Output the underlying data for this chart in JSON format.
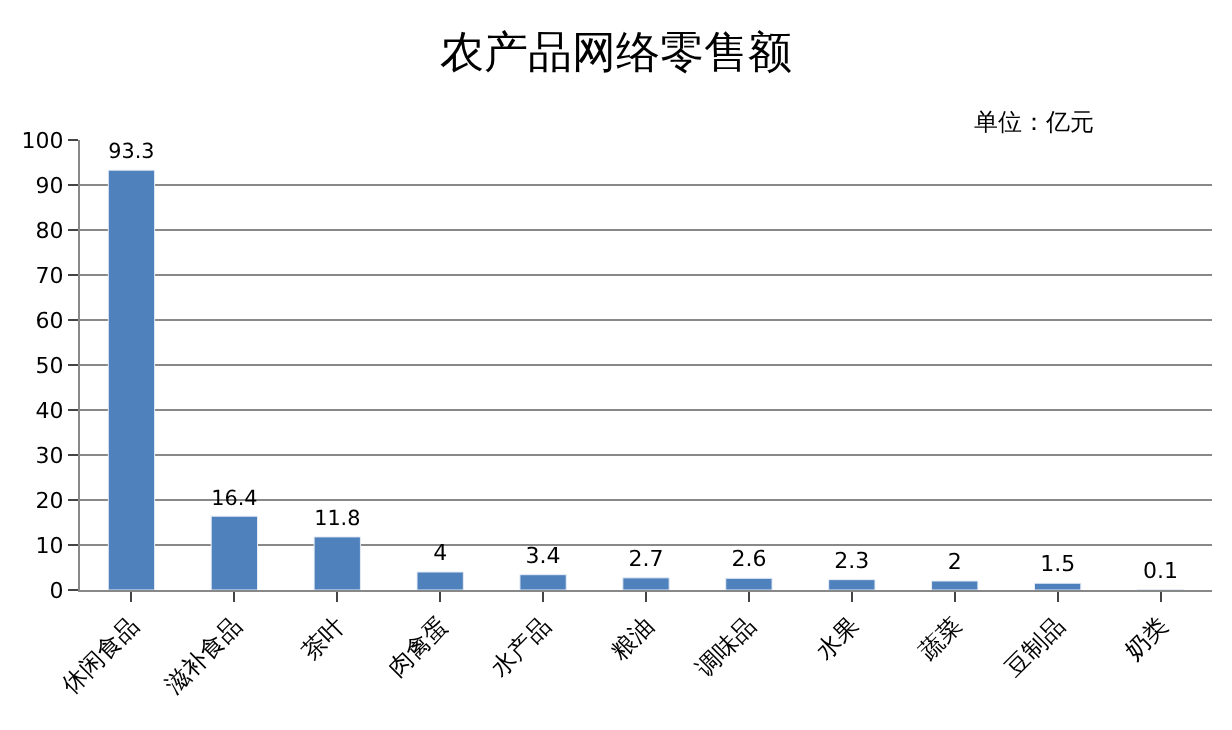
{
  "chart_data": {
    "type": "bar",
    "title": "农产品网络零售额",
    "annotations": [
      "单位：亿元"
    ],
    "categories": [
      "休闲食品",
      "滋补食品",
      "茶叶",
      "肉禽蛋",
      "水产品",
      "粮油",
      "调味品",
      "水果",
      "蔬菜",
      "豆制品",
      "奶类"
    ],
    "values": [
      93.3,
      16.4,
      11.8,
      4,
      3.4,
      2.7,
      2.6,
      2.3,
      2,
      1.5,
      0.1
    ],
    "color": "#4f81bd",
    "ylim": [
      0,
      100
    ],
    "yticks": [
      0,
      10,
      20,
      30,
      40,
      50,
      60,
      70,
      80,
      90,
      100
    ],
    "grid": "y",
    "data_labels": true,
    "legend": false
  }
}
